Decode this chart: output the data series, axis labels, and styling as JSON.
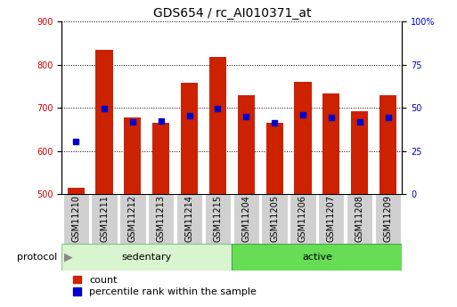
{
  "title": "GDS654 / rc_AI010371_at",
  "samples": [
    "GSM11210",
    "GSM11211",
    "GSM11212",
    "GSM11213",
    "GSM11214",
    "GSM11215",
    "GSM11204",
    "GSM11205",
    "GSM11206",
    "GSM11207",
    "GSM11208",
    "GSM11209"
  ],
  "groups": [
    "sedentary",
    "sedentary",
    "sedentary",
    "sedentary",
    "sedentary",
    "sedentary",
    "active",
    "active",
    "active",
    "active",
    "active",
    "active"
  ],
  "red_values": [
    515,
    835,
    678,
    665,
    758,
    818,
    730,
    665,
    760,
    733,
    693,
    730
  ],
  "blue_values": [
    622,
    698,
    668,
    670,
    682,
    698,
    680,
    665,
    684,
    678,
    668,
    678
  ],
  "ylim_left": [
    500,
    900
  ],
  "ylim_right": [
    0,
    100
  ],
  "yticks_left": [
    500,
    600,
    700,
    800,
    900
  ],
  "yticks_right": [
    0,
    25,
    50,
    75,
    100
  ],
  "yticklabels_right": [
    "0",
    "25",
    "50",
    "75",
    "100%"
  ],
  "left_axis_color": "#cc0000",
  "right_axis_color": "#0000cc",
  "bar_color": "#cc2200",
  "blue_marker_color": "#0000cc",
  "bg_color": "#ffffff",
  "sed_color": "#d8f5d0",
  "act_color": "#66dd55",
  "xtick_bg": "#d0d0d0",
  "legend_count": "count",
  "legend_percentile": "percentile rank within the sample",
  "bar_width": 0.6,
  "title_fontsize": 10,
  "tick_fontsize": 7,
  "label_fontsize": 8
}
